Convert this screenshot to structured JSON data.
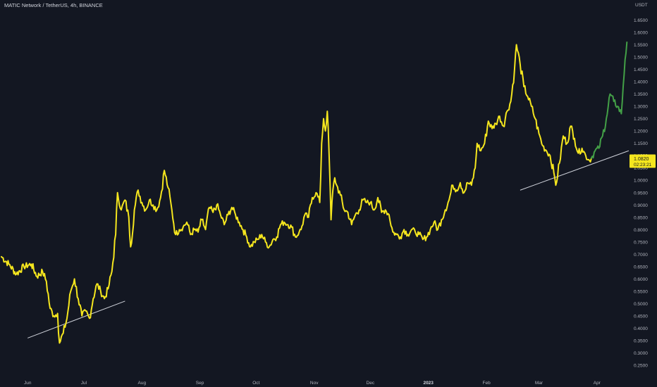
{
  "header": {
    "title": "MATIC Network / TetherUS, 4h, BINANCE"
  },
  "price_axis": {
    "currency": "USDT",
    "last_price": "1.0820",
    "countdown": "02:23:21"
  },
  "colors": {
    "background": "#131722",
    "main_line": "#f5e61e",
    "recent_line": "#43a047",
    "trendline": "#d1d4dc",
    "last_price_tag": "#f5e61e",
    "text": "#b2b5be"
  },
  "chart_data": {
    "type": "line",
    "title": "MATIC Network / TetherUS, 4h, BINANCE",
    "xlabel": "",
    "ylabel": "USDT",
    "ylim": [
      0.23,
      1.68
    ],
    "x_ticks": [
      "Jun",
      "Jul",
      "Aug",
      "Sep",
      "Oct",
      "Nov",
      "Dec",
      "2023",
      "Feb",
      "Mar",
      "Apr"
    ],
    "x_tick_dates": [
      "2022-06-01",
      "2022-07-01",
      "2022-08-01",
      "2022-09-01",
      "2022-10-01",
      "2022-11-01",
      "2022-12-01",
      "2023-01-01",
      "2023-02-01",
      "2023-03-01",
      "2023-04-01"
    ],
    "y_ticks": [
      "1.6500",
      "1.6000",
      "1.5500",
      "1.5000",
      "1.4500",
      "1.4000",
      "1.3500",
      "1.3000",
      "1.2500",
      "1.2000",
      "1.1500",
      "1.1000",
      "1.0500",
      "1.0000",
      "0.9500",
      "0.9000",
      "0.8500",
      "0.8000",
      "0.7500",
      "0.7000",
      "0.6500",
      "0.6000",
      "0.5500",
      "0.5000",
      "0.4500",
      "0.4000",
      "0.3500",
      "0.3000",
      "0.2500"
    ],
    "grid": false,
    "series": [
      {
        "color": "#f5e61e",
        "points": [
          [
            "2022-05-18",
            0.69
          ],
          [
            "2022-05-22",
            0.66
          ],
          [
            "2022-05-26",
            0.62
          ],
          [
            "2022-05-30",
            0.65
          ],
          [
            "2022-06-03",
            0.66
          ],
          [
            "2022-06-06",
            0.61
          ],
          [
            "2022-06-09",
            0.63
          ],
          [
            "2022-06-11",
            0.59
          ],
          [
            "2022-06-13",
            0.48
          ],
          [
            "2022-06-15",
            0.45
          ],
          [
            "2022-06-17",
            0.46
          ],
          [
            "2022-06-18",
            0.34
          ],
          [
            "2022-06-20",
            0.38
          ],
          [
            "2022-06-22",
            0.44
          ],
          [
            "2022-06-24",
            0.55
          ],
          [
            "2022-06-26",
            0.6
          ],
          [
            "2022-06-28",
            0.52
          ],
          [
            "2022-06-30",
            0.45
          ],
          [
            "2022-07-02",
            0.47
          ],
          [
            "2022-07-04",
            0.44
          ],
          [
            "2022-07-06",
            0.52
          ],
          [
            "2022-07-08",
            0.58
          ],
          [
            "2022-07-10",
            0.55
          ],
          [
            "2022-07-12",
            0.52
          ],
          [
            "2022-07-14",
            0.56
          ],
          [
            "2022-07-16",
            0.63
          ],
          [
            "2022-07-18",
            0.78
          ],
          [
            "2022-07-19",
            0.95
          ],
          [
            "2022-07-21",
            0.88
          ],
          [
            "2022-07-23",
            0.92
          ],
          [
            "2022-07-25",
            0.85
          ],
          [
            "2022-07-26",
            0.73
          ],
          [
            "2022-07-28",
            0.88
          ],
          [
            "2022-07-30",
            0.96
          ],
          [
            "2022-08-01",
            0.91
          ],
          [
            "2022-08-03",
            0.88
          ],
          [
            "2022-08-05",
            0.92
          ],
          [
            "2022-08-07",
            0.9
          ],
          [
            "2022-08-09",
            0.88
          ],
          [
            "2022-08-11",
            0.93
          ],
          [
            "2022-08-13",
            1.04
          ],
          [
            "2022-08-15",
            0.97
          ],
          [
            "2022-08-17",
            0.88
          ],
          [
            "2022-08-19",
            0.78
          ],
          [
            "2022-08-21",
            0.8
          ],
          [
            "2022-08-23",
            0.81
          ],
          [
            "2022-08-25",
            0.83
          ],
          [
            "2022-08-27",
            0.78
          ],
          [
            "2022-08-29",
            0.8
          ],
          [
            "2022-08-31",
            0.79
          ],
          [
            "2022-09-02",
            0.84
          ],
          [
            "2022-09-04",
            0.8
          ],
          [
            "2022-09-06",
            0.89
          ],
          [
            "2022-09-08",
            0.87
          ],
          [
            "2022-09-10",
            0.9
          ],
          [
            "2022-09-12",
            0.86
          ],
          [
            "2022-09-14",
            0.82
          ],
          [
            "2022-09-16",
            0.86
          ],
          [
            "2022-09-18",
            0.89
          ],
          [
            "2022-09-20",
            0.86
          ],
          [
            "2022-09-22",
            0.83
          ],
          [
            "2022-09-24",
            0.8
          ],
          [
            "2022-09-26",
            0.77
          ],
          [
            "2022-09-28",
            0.73
          ],
          [
            "2022-09-30",
            0.75
          ],
          [
            "2022-10-02",
            0.76
          ],
          [
            "2022-10-04",
            0.78
          ],
          [
            "2022-10-06",
            0.75
          ],
          [
            "2022-10-08",
            0.73
          ],
          [
            "2022-10-10",
            0.76
          ],
          [
            "2022-10-12",
            0.77
          ],
          [
            "2022-10-14",
            0.82
          ],
          [
            "2022-10-16",
            0.83
          ],
          [
            "2022-10-18",
            0.82
          ],
          [
            "2022-10-20",
            0.81
          ],
          [
            "2022-10-22",
            0.77
          ],
          [
            "2022-10-24",
            0.79
          ],
          [
            "2022-10-25",
            0.8
          ],
          [
            "2022-10-27",
            0.86
          ],
          [
            "2022-10-29",
            0.85
          ],
          [
            "2022-10-31",
            0.93
          ],
          [
            "2022-11-02",
            0.95
          ],
          [
            "2022-11-04",
            0.91
          ],
          [
            "2022-11-05",
            1.15
          ],
          [
            "2022-11-06",
            1.25
          ],
          [
            "2022-11-07",
            1.2
          ],
          [
            "2022-11-08",
            1.28
          ],
          [
            "2022-11-09",
            1.1
          ],
          [
            "2022-11-10",
            0.84
          ],
          [
            "2022-11-11",
            0.96
          ],
          [
            "2022-11-12",
            1.01
          ],
          [
            "2022-11-13",
            0.98
          ],
          [
            "2022-11-15",
            0.94
          ],
          [
            "2022-11-17",
            0.88
          ],
          [
            "2022-11-19",
            0.87
          ],
          [
            "2022-11-21",
            0.82
          ],
          [
            "2022-11-23",
            0.86
          ],
          [
            "2022-11-25",
            0.88
          ],
          [
            "2022-11-27",
            0.92
          ],
          [
            "2022-11-29",
            0.91
          ],
          [
            "2022-12-01",
            0.91
          ],
          [
            "2022-12-03",
            0.88
          ],
          [
            "2022-12-05",
            0.93
          ],
          [
            "2022-12-07",
            0.87
          ],
          [
            "2022-12-09",
            0.88
          ],
          [
            "2022-12-11",
            0.86
          ],
          [
            "2022-12-13",
            0.79
          ],
          [
            "2022-12-15",
            0.78
          ],
          [
            "2022-12-17",
            0.77
          ],
          [
            "2022-12-19",
            0.8
          ],
          [
            "2022-12-21",
            0.78
          ],
          [
            "2022-12-23",
            0.8
          ],
          [
            "2022-12-25",
            0.79
          ],
          [
            "2022-12-27",
            0.78
          ],
          [
            "2022-12-29",
            0.76
          ],
          [
            "2022-12-31",
            0.77
          ],
          [
            "2023-01-02",
            0.8
          ],
          [
            "2023-01-04",
            0.83
          ],
          [
            "2023-01-06",
            0.8
          ],
          [
            "2023-01-08",
            0.84
          ],
          [
            "2023-01-10",
            0.88
          ],
          [
            "2023-01-12",
            0.92
          ],
          [
            "2023-01-14",
            0.98
          ],
          [
            "2023-01-16",
            0.96
          ],
          [
            "2023-01-18",
            0.99
          ],
          [
            "2023-01-20",
            0.95
          ],
          [
            "2023-01-22",
            0.99
          ],
          [
            "2023-01-24",
            0.98
          ],
          [
            "2023-01-26",
            1.05
          ],
          [
            "2023-01-27",
            1.15
          ],
          [
            "2023-01-29",
            1.12
          ],
          [
            "2023-01-31",
            1.15
          ],
          [
            "2023-02-02",
            1.24
          ],
          [
            "2023-02-04",
            1.21
          ],
          [
            "2023-02-06",
            1.23
          ],
          [
            "2023-02-08",
            1.26
          ],
          [
            "2023-02-10",
            1.22
          ],
          [
            "2023-02-12",
            1.28
          ],
          [
            "2023-02-14",
            1.32
          ],
          [
            "2023-02-16",
            1.45
          ],
          [
            "2023-02-17",
            1.55
          ],
          [
            "2023-02-19",
            1.47
          ],
          [
            "2023-02-21",
            1.38
          ],
          [
            "2023-02-23",
            1.34
          ],
          [
            "2023-02-25",
            1.3
          ],
          [
            "2023-02-27",
            1.25
          ],
          [
            "2023-03-01",
            1.19
          ],
          [
            "2023-03-03",
            1.14
          ],
          [
            "2023-03-05",
            1.12
          ],
          [
            "2023-03-07",
            1.1
          ],
          [
            "2023-03-09",
            1.03
          ],
          [
            "2023-03-10",
            0.98
          ],
          [
            "2023-03-12",
            1.07
          ],
          [
            "2023-03-14",
            1.18
          ],
          [
            "2023-03-16",
            1.15
          ],
          [
            "2023-03-18",
            1.22
          ],
          [
            "2023-03-20",
            1.17
          ],
          [
            "2023-03-22",
            1.11
          ],
          [
            "2023-03-24",
            1.13
          ],
          [
            "2023-03-26",
            1.1
          ],
          [
            "2023-03-28",
            1.08
          ],
          [
            "2023-03-29",
            1.09
          ]
        ]
      },
      {
        "color": "#43a047",
        "points": [
          [
            "2023-03-29",
            1.09
          ],
          [
            "2023-03-31",
            1.12
          ],
          [
            "2023-04-02",
            1.13
          ],
          [
            "2023-04-04",
            1.18
          ],
          [
            "2023-04-06",
            1.25
          ],
          [
            "2023-04-08",
            1.35
          ],
          [
            "2023-04-10",
            1.32
          ],
          [
            "2023-04-12",
            1.3
          ],
          [
            "2023-04-14",
            1.27
          ],
          [
            "2023-04-15",
            1.38
          ],
          [
            "2023-04-16",
            1.49
          ],
          [
            "2023-04-17",
            1.56
          ]
        ]
      }
    ],
    "trendlines": [
      {
        "from": [
          "2022-06-01",
          0.36
        ],
        "to": [
          "2022-07-23",
          0.51
        ]
      },
      {
        "from": [
          "2023-02-19",
          0.96
        ],
        "to": [
          "2023-04-18",
          1.12
        ]
      }
    ]
  }
}
